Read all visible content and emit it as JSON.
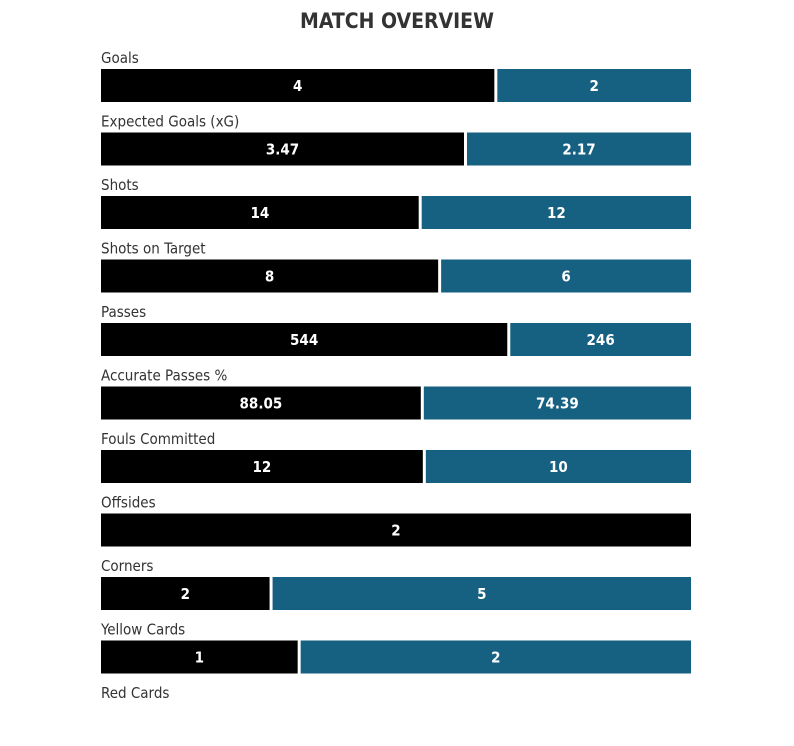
{
  "chart_data": {
    "type": "bar",
    "orientation": "horizontal-stacked-100",
    "title": "MATCH OVERVIEW",
    "colors": {
      "home": "#000000",
      "away": "#166082",
      "divider": "#ffffff"
    },
    "categories": [
      "Goals",
      "Expected Goals (xG)",
      "Shots",
      "Shots on Target",
      "Passes",
      "Accurate Passes %",
      "Fouls Committed",
      "Offsides",
      "Corners",
      "Yellow Cards",
      "Red Cards"
    ],
    "series": [
      {
        "values": [
          4,
          3.47,
          14,
          8,
          544,
          88.05,
          12,
          2,
          2,
          1,
          0
        ],
        "labels": [
          "4",
          "3.47",
          "14",
          "8",
          "544",
          "88.05",
          "12",
          "2",
          "2",
          "1",
          ""
        ]
      },
      {
        "values": [
          2,
          2.17,
          12,
          6,
          246,
          74.39,
          10,
          0,
          5,
          2,
          0
        ],
        "labels": [
          "2",
          "2.17",
          "12",
          "6",
          "246",
          "74.39",
          "10",
          "",
          "5",
          "2",
          ""
        ]
      }
    ]
  }
}
